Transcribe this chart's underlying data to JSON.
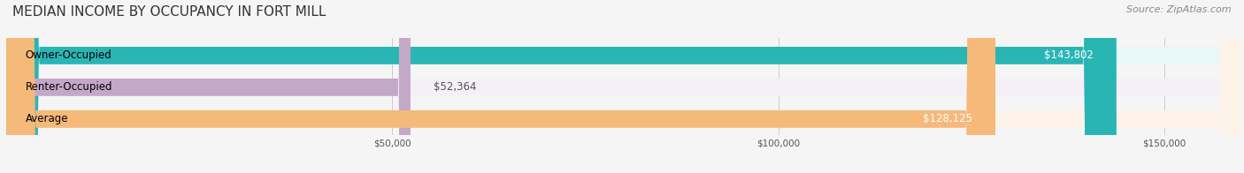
{
  "title": "MEDIAN INCOME BY OCCUPANCY IN FORT MILL",
  "source": "Source: ZipAtlas.com",
  "categories": [
    "Owner-Occupied",
    "Renter-Occupied",
    "Average"
  ],
  "values": [
    143802,
    52364,
    128125
  ],
  "bar_colors": [
    "#2ab5b5",
    "#c4a8c8",
    "#f5b97a"
  ],
  "bar_bg_colors": [
    "#e8f8f8",
    "#f5f0f8",
    "#fdf3e8"
  ],
  "value_labels": [
    "$143,802",
    "$52,364",
    "$128,125"
  ],
  "x_ticks": [
    50000,
    100000,
    150000
  ],
  "x_tick_labels": [
    "$50,000",
    "$100,000",
    "$150,000"
  ],
  "xlim": [
    0,
    160000
  ],
  "title_fontsize": 11,
  "source_fontsize": 8,
  "label_fontsize": 8.5,
  "value_fontsize": 8.5,
  "background_color": "#f5f5f5"
}
